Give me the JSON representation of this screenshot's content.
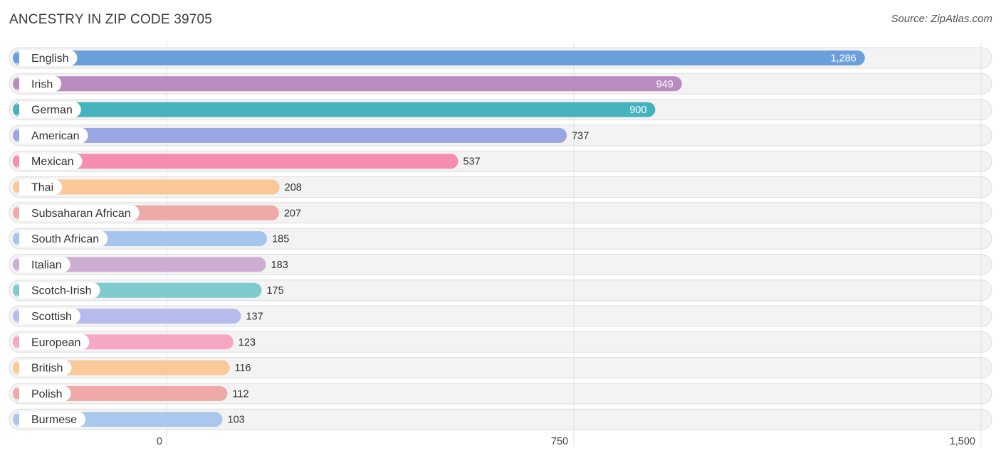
{
  "header": {
    "title": "ANCESTRY IN ZIP CODE 39705",
    "source": "Source: ZipAtlas.com"
  },
  "chart_data": {
    "type": "bar",
    "orientation": "horizontal",
    "title": "ANCESTRY IN ZIP CODE 39705",
    "xlim": [
      0,
      1500
    ],
    "ticks": [
      0,
      750,
      1500
    ],
    "tick_labels": [
      "0",
      "750",
      "1,500"
    ],
    "grid": true,
    "categories": [
      "English",
      "Irish",
      "German",
      "American",
      "Mexican",
      "Thai",
      "Subsaharan African",
      "South African",
      "Italian",
      "Scotch-Irish",
      "Scottish",
      "European",
      "British",
      "Polish",
      "Burmese"
    ],
    "values": [
      1286,
      949,
      900,
      737,
      537,
      208,
      207,
      185,
      183,
      175,
      137,
      123,
      116,
      112,
      103
    ],
    "value_labels": [
      "1,286",
      "949",
      "900",
      "737",
      "537",
      "208",
      "207",
      "185",
      "183",
      "175",
      "137",
      "123",
      "116",
      "112",
      "103"
    ],
    "colors": [
      "#6a9fdc",
      "#b98bbf",
      "#45b3be",
      "#9aa6e3",
      "#f48daf",
      "#fac898",
      "#eeaaa8",
      "#a6c5ec",
      "#cdaed2",
      "#7fcacf",
      "#b5bcec",
      "#f6a7c3",
      "#f9c998",
      "#f0a9a9",
      "#aac8ee"
    ]
  }
}
